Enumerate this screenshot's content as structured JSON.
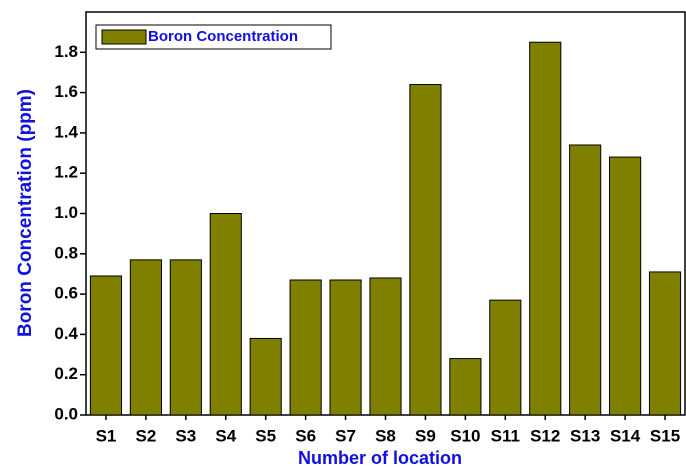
{
  "chart_data": {
    "type": "bar",
    "x_label": "Number of location",
    "y_label": "Boron Concentration  (ppm)",
    "categories": [
      "S1",
      "S2",
      "S3",
      "S4",
      "S5",
      "S6",
      "S7",
      "S8",
      "S9",
      "S10",
      "S11",
      "S12",
      "S13",
      "S14",
      "S15"
    ],
    "series": [
      {
        "name": "Boron Concentration",
        "color": "#808000",
        "values": [
          0.69,
          0.77,
          0.77,
          1.0,
          0.38,
          0.67,
          0.67,
          0.68,
          1.64,
          0.28,
          0.57,
          1.85,
          1.34,
          1.28,
          0.71
        ]
      }
    ],
    "ylim": [
      0,
      2.0
    ],
    "yticks": [
      {
        "value": 0,
        "label": "0.0"
      },
      0.2,
      0.4,
      0.6,
      0.8,
      {
        "value": 1,
        "label": "1.0"
      },
      1.2,
      1.4,
      1.6,
      1.8
    ],
    "legend": "top-left",
    "grid": false
  }
}
